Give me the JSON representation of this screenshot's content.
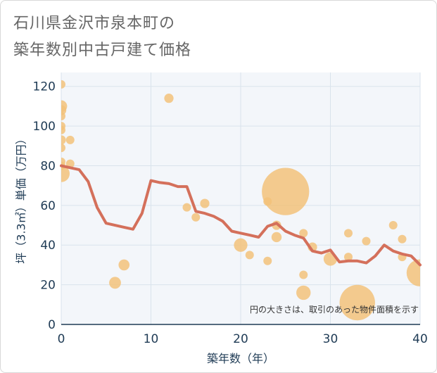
{
  "chart_data": {
    "type": "scatter",
    "title_line1": "石川県金沢市泉本町の",
    "title_line2": "築年数別中古戸建て価格",
    "xlabel": "築年数（年）",
    "ylabel": "坪（3.3㎡）単価（万円）",
    "xlim": [
      0,
      40
    ],
    "ylim": [
      0,
      127
    ],
    "xticks": [
      0,
      10,
      20,
      30,
      40
    ],
    "yticks": [
      0,
      20,
      40,
      60,
      80,
      100,
      120
    ],
    "note": "円の大きさは、取引のあった物件面積を示す",
    "colors": {
      "bubble": "#f2c27a",
      "line": "#d4705b",
      "grid": "#d9e3ec",
      "plot_bg": "#f3f6fa",
      "axis": "#1f3b55"
    },
    "scatter": [
      {
        "x": 0,
        "y": 121,
        "s": 1
      },
      {
        "x": 0,
        "y": 110,
        "s": 1.4
      },
      {
        "x": 0,
        "y": 108,
        "s": 1.2
      },
      {
        "x": 0,
        "y": 105,
        "s": 1
      },
      {
        "x": 0,
        "y": 100,
        "s": 1
      },
      {
        "x": 0,
        "y": 98,
        "s": 1
      },
      {
        "x": 0,
        "y": 93,
        "s": 1.1
      },
      {
        "x": 0,
        "y": 89,
        "s": 1
      },
      {
        "x": 0,
        "y": 82,
        "s": 1
      },
      {
        "x": 0,
        "y": 80,
        "s": 1
      },
      {
        "x": 0,
        "y": 76,
        "s": 2
      },
      {
        "x": 1,
        "y": 93,
        "s": 1
      },
      {
        "x": 1,
        "y": 81,
        "s": 1
      },
      {
        "x": 6,
        "y": 21,
        "s": 1.4
      },
      {
        "x": 7,
        "y": 30,
        "s": 1.3
      },
      {
        "x": 12,
        "y": 114,
        "s": 1.1
      },
      {
        "x": 14,
        "y": 59,
        "s": 1
      },
      {
        "x": 15,
        "y": 54,
        "s": 1
      },
      {
        "x": 16,
        "y": 61,
        "s": 1.1
      },
      {
        "x": 20,
        "y": 40,
        "s": 1.6
      },
      {
        "x": 21,
        "y": 35,
        "s": 1
      },
      {
        "x": 23,
        "y": 62,
        "s": 1
      },
      {
        "x": 23,
        "y": 32,
        "s": 1
      },
      {
        "x": 24,
        "y": 50,
        "s": 1.1
      },
      {
        "x": 24,
        "y": 44,
        "s": 1.2
      },
      {
        "x": 25,
        "y": 67,
        "s": 5.6
      },
      {
        "x": 27,
        "y": 46,
        "s": 1
      },
      {
        "x": 27,
        "y": 25,
        "s": 1
      },
      {
        "x": 27,
        "y": 16,
        "s": 1.7
      },
      {
        "x": 28,
        "y": 39,
        "s": 1.1
      },
      {
        "x": 30,
        "y": 33,
        "s": 1.6
      },
      {
        "x": 32,
        "y": 46,
        "s": 1
      },
      {
        "x": 32,
        "y": 34,
        "s": 1
      },
      {
        "x": 33,
        "y": 11,
        "s": 4.2
      },
      {
        "x": 34,
        "y": 42,
        "s": 1
      },
      {
        "x": 37,
        "y": 50,
        "s": 1
      },
      {
        "x": 38,
        "y": 43,
        "s": 1
      },
      {
        "x": 38,
        "y": 34,
        "s": 1
      },
      {
        "x": 40,
        "y": 26,
        "s": 3.2
      }
    ],
    "line": {
      "x": [
        0,
        1,
        2,
        3,
        4,
        5,
        6,
        7,
        8,
        9,
        10,
        11,
        12,
        13,
        14,
        15,
        16,
        17,
        18,
        19,
        20,
        21,
        22,
        23,
        24,
        25,
        26,
        27,
        28,
        29,
        30,
        31,
        32,
        33,
        34,
        35,
        36,
        37,
        38,
        39,
        40
      ],
      "y": [
        80,
        79,
        78,
        72,
        59,
        51,
        50,
        49,
        48,
        56,
        72.5,
        71.5,
        71,
        69.5,
        69.5,
        57,
        56,
        54.5,
        52,
        47,
        46,
        45,
        44,
        49.5,
        51,
        47,
        45,
        43.5,
        37,
        36,
        37.5,
        31.5,
        32,
        32,
        31,
        34.5,
        40,
        37,
        35.5,
        34.5,
        30
      ]
    }
  }
}
